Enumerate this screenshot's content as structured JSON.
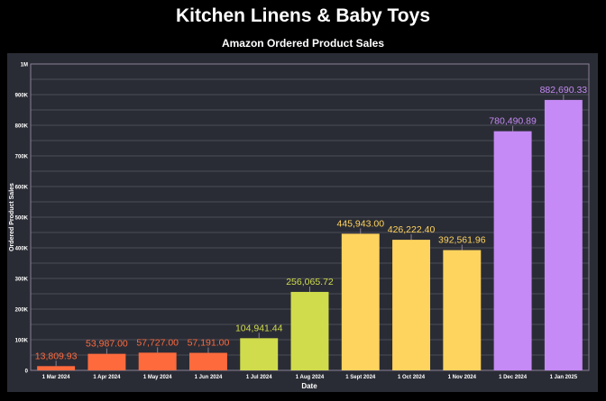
{
  "header": {
    "title": "Kitchen Linens & Baby Toys",
    "subtitle": "Amazon Ordered Product Sales"
  },
  "colors": {
    "background": "#000000",
    "panel": "#2a2c35",
    "grid": "#4a4c56",
    "axis": "#8a7f96",
    "text": "#ffffff",
    "orange": "#ff6a3d",
    "lime": "#d0dc4c",
    "yellow": "#ffd45e",
    "purple": "#c58af5"
  },
  "chart_data": {
    "type": "bar",
    "title": "Amazon Ordered Product Sales",
    "xlabel": "Date",
    "ylabel": "Ordered Product Sales",
    "ylim": [
      0,
      1000000
    ],
    "yticks": [
      0,
      100000,
      200000,
      300000,
      400000,
      500000,
      600000,
      700000,
      800000,
      900000,
      1000000
    ],
    "ytick_labels": [
      "0",
      "100K",
      "200K",
      "300K",
      "400K",
      "500K",
      "600K",
      "700K",
      "800K",
      "900K",
      "1M"
    ],
    "grid": true,
    "categories": [
      "1 Mar 2024",
      "1 Apr 2024",
      "1 May 2024",
      "1 Jun 2024",
      "1 Jul 2024",
      "1 Aug 2024",
      "1 Sept 2024",
      "1 Oct 2024",
      "1 Nov 2024",
      "1 Dec 2024",
      "1 Jan 2025"
    ],
    "values": [
      13809.93,
      53987.0,
      57727.0,
      57191.0,
      104941.44,
      256065.72,
      445943.0,
      426222.4,
      392561.96,
      780490.89,
      882690.33
    ],
    "data_labels": [
      "13,809.93",
      "53,987.00",
      "57,727.00",
      "57,191.00",
      "104,941.44",
      "256,065.72",
      "445,943.00",
      "426,222.40",
      "392,561.96",
      "780,490.89",
      "882,690.33"
    ],
    "bar_colors": [
      "#ff6a3d",
      "#ff6a3d",
      "#ff6a3d",
      "#ff6a3d",
      "#d0dc4c",
      "#d0dc4c",
      "#ffd45e",
      "#ffd45e",
      "#ffd45e",
      "#c58af5",
      "#c58af5"
    ]
  }
}
